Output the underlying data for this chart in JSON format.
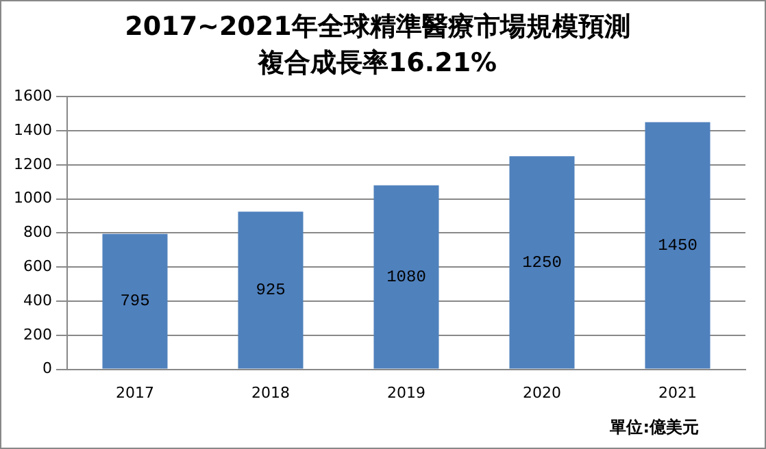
{
  "chart_data": {
    "type": "bar",
    "title": "2017~2021年全球精準醫療市場規模預測",
    "subtitle": "複合成長率16.21%",
    "categories": [
      "2017",
      "2018",
      "2019",
      "2020",
      "2021"
    ],
    "values": [
      795,
      925,
      1080,
      1250,
      1450
    ],
    "color": "#4f81bd",
    "ylim": [
      0,
      1600
    ],
    "yticks": [
      0,
      200,
      400,
      600,
      800,
      1000,
      1200,
      1400,
      1600
    ],
    "grid": "y",
    "data_labels": true,
    "legend": false,
    "annotations": [
      "單位:億美元"
    ]
  }
}
